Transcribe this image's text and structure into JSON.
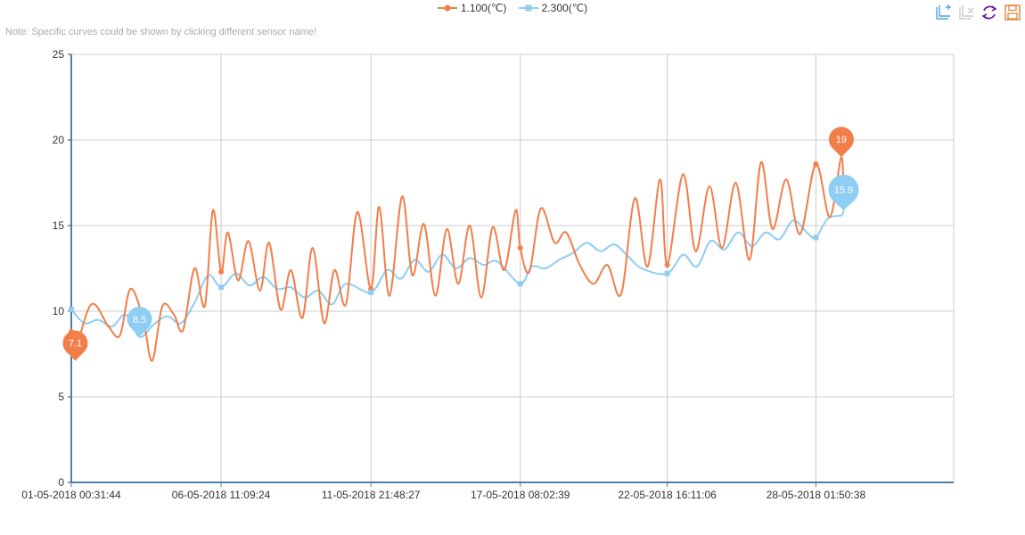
{
  "note": "Note: Specific curves could be shown by clicking different sensor name!",
  "colors": {
    "s1": "#f27e4a",
    "s2": "#8fcdf2",
    "axis": "#4d7fa8",
    "grid": "#cccccc"
  },
  "toolbox": [
    {
      "name": "zoom-icon"
    },
    {
      "name": "zoom-reset-icon"
    },
    {
      "name": "restore-icon"
    },
    {
      "name": "save-image-icon"
    }
  ],
  "chart_data": {
    "type": "line",
    "title": "",
    "ylim": [
      0,
      25
    ],
    "yticks": [
      0,
      5,
      10,
      15,
      20,
      25
    ],
    "xticks": [
      "01-05-2018 00:31:44",
      "06-05-2018 11:09:24",
      "11-05-2018 21:48:27",
      "17-05-2018 08:02:39",
      "22-05-2018 16:11:06",
      "28-05-2018 01:50:38"
    ],
    "xlim": [
      "2018-05-01 00:31:44",
      "2018-06-02 02:00:00"
    ],
    "grid": true,
    "legend": "top-center",
    "series": [
      {
        "name": "1.100(℃)",
        "marker": "circle",
        "points": [
          [
            "2018-05-01 00:31",
            8.8
          ],
          [
            "2018-05-01 03:00",
            7.5
          ],
          [
            "2018-05-01 18:00",
            10.4
          ],
          [
            "2018-05-02 09:00",
            9.1
          ],
          [
            "2018-05-02 19:00",
            8.6
          ],
          [
            "2018-05-03 04:00",
            11.3
          ],
          [
            "2018-05-03 15:00",
            9.6
          ],
          [
            "2018-05-03 23:00",
            7.1
          ],
          [
            "2018-05-04 08:00",
            10.3
          ],
          [
            "2018-05-04 18:00",
            9.8
          ],
          [
            "2018-05-05 02:00",
            8.9
          ],
          [
            "2018-05-05 12:00",
            12.5
          ],
          [
            "2018-05-05 21:00",
            10.3
          ],
          [
            "2018-05-06 04:00",
            15.9
          ],
          [
            "2018-05-06 11:09",
            12.3
          ],
          [
            "2018-05-06 17:00",
            14.6
          ],
          [
            "2018-05-07 02:00",
            11.8
          ],
          [
            "2018-05-07 11:00",
            14.1
          ],
          [
            "2018-05-07 21:00",
            11.2
          ],
          [
            "2018-05-08 05:00",
            14.0
          ],
          [
            "2018-05-08 15:00",
            10.1
          ],
          [
            "2018-05-09 00:00",
            12.4
          ],
          [
            "2018-05-09 10:00",
            9.6
          ],
          [
            "2018-05-09 19:00",
            13.7
          ],
          [
            "2018-05-10 05:00",
            9.3
          ],
          [
            "2018-05-10 14:00",
            12.4
          ],
          [
            "2018-05-11 00:00",
            10.4
          ],
          [
            "2018-05-11 10:00",
            15.8
          ],
          [
            "2018-05-11 21:48",
            11.3
          ],
          [
            "2018-05-12 05:00",
            16.1
          ],
          [
            "2018-05-12 14:00",
            10.9
          ],
          [
            "2018-05-13 01:00",
            16.7
          ],
          [
            "2018-05-13 10:00",
            12.1
          ],
          [
            "2018-05-13 20:00",
            15.1
          ],
          [
            "2018-05-14 06:00",
            10.9
          ],
          [
            "2018-05-14 16:00",
            14.8
          ],
          [
            "2018-05-15 02:00",
            11.6
          ],
          [
            "2018-05-15 12:00",
            15.0
          ],
          [
            "2018-05-15 22:00",
            10.8
          ],
          [
            "2018-05-16 08:00",
            14.9
          ],
          [
            "2018-05-16 18:00",
            12.4
          ],
          [
            "2018-05-17 04:00",
            15.9
          ],
          [
            "2018-05-17 08:02",
            13.7
          ],
          [
            "2018-05-17 16:00",
            12.3
          ],
          [
            "2018-05-18 02:00",
            16.0
          ],
          [
            "2018-05-18 14:00",
            14.0
          ],
          [
            "2018-05-19 00:00",
            14.6
          ],
          [
            "2018-05-19 12:00",
            12.7
          ],
          [
            "2018-05-20 00:00",
            11.6
          ],
          [
            "2018-05-20 12:00",
            12.7
          ],
          [
            "2018-05-21 00:00",
            11.0
          ],
          [
            "2018-05-21 12:00",
            16.6
          ],
          [
            "2018-05-21 23:00",
            12.6
          ],
          [
            "2018-05-22 10:00",
            17.7
          ],
          [
            "2018-05-22 16:11",
            12.7
          ],
          [
            "2018-05-23 06:00",
            18.0
          ],
          [
            "2018-05-23 17:00",
            13.5
          ],
          [
            "2018-05-24 05:00",
            17.3
          ],
          [
            "2018-05-24 16:00",
            13.7
          ],
          [
            "2018-05-25 04:00",
            17.5
          ],
          [
            "2018-05-25 16:00",
            13.0
          ],
          [
            "2018-05-26 02:00",
            18.7
          ],
          [
            "2018-05-26 12:00",
            14.8
          ],
          [
            "2018-05-27 00:00",
            17.7
          ],
          [
            "2018-05-27 12:00",
            14.5
          ],
          [
            "2018-05-28 01:50",
            18.6
          ],
          [
            "2018-05-28 14:00",
            15.5
          ],
          [
            "2018-05-29 00:00",
            19.0
          ],
          [
            "2018-05-29 02:00",
            16.1
          ]
        ]
      },
      {
        "name": "2.300(℃)",
        "marker": "square",
        "points": [
          [
            "2018-05-01 00:31",
            10.1
          ],
          [
            "2018-05-01 12:00",
            9.3
          ],
          [
            "2018-05-02 00:00",
            9.5
          ],
          [
            "2018-05-02 12:00",
            9.1
          ],
          [
            "2018-05-03 00:00",
            9.8
          ],
          [
            "2018-05-03 12:00",
            8.5
          ],
          [
            "2018-05-04 00:00",
            9.2
          ],
          [
            "2018-05-04 12:00",
            9.7
          ],
          [
            "2018-05-05 00:00",
            9.3
          ],
          [
            "2018-05-05 12:00",
            10.5
          ],
          [
            "2018-05-06 00:00",
            12.1
          ],
          [
            "2018-05-06 11:09",
            11.4
          ],
          [
            "2018-05-07 00:00",
            12.2
          ],
          [
            "2018-05-07 12:00",
            11.5
          ],
          [
            "2018-05-08 00:00",
            12.0
          ],
          [
            "2018-05-08 12:00",
            11.3
          ],
          [
            "2018-05-09 00:00",
            11.4
          ],
          [
            "2018-05-09 12:00",
            10.8
          ],
          [
            "2018-05-10 00:00",
            11.2
          ],
          [
            "2018-05-10 12:00",
            10.4
          ],
          [
            "2018-05-11 00:00",
            11.6
          ],
          [
            "2018-05-11 21:48",
            11.1
          ],
          [
            "2018-05-12 12:00",
            12.4
          ],
          [
            "2018-05-13 00:00",
            11.9
          ],
          [
            "2018-05-13 12:00",
            13.0
          ],
          [
            "2018-05-14 00:00",
            12.3
          ],
          [
            "2018-05-14 12:00",
            13.3
          ],
          [
            "2018-05-15 00:00",
            12.5
          ],
          [
            "2018-05-15 12:00",
            13.1
          ],
          [
            "2018-05-16 00:00",
            12.7
          ],
          [
            "2018-05-16 12:00",
            12.9
          ],
          [
            "2018-05-17 08:02",
            11.6
          ],
          [
            "2018-05-17 18:00",
            12.6
          ],
          [
            "2018-05-18 06:00",
            12.5
          ],
          [
            "2018-05-18 18:00",
            13.0
          ],
          [
            "2018-05-19 06:00",
            13.4
          ],
          [
            "2018-05-19 18:00",
            14.0
          ],
          [
            "2018-05-20 06:00",
            13.5
          ],
          [
            "2018-05-20 18:00",
            13.9
          ],
          [
            "2018-05-21 06:00",
            13.2
          ],
          [
            "2018-05-21 18:00",
            12.5
          ],
          [
            "2018-05-22 16:11",
            12.2
          ],
          [
            "2018-05-23 06:00",
            13.3
          ],
          [
            "2018-05-23 18:00",
            12.6
          ],
          [
            "2018-05-24 06:00",
            14.1
          ],
          [
            "2018-05-24 18:00",
            13.6
          ],
          [
            "2018-05-25 06:00",
            14.6
          ],
          [
            "2018-05-25 18:00",
            13.8
          ],
          [
            "2018-05-26 06:00",
            14.6
          ],
          [
            "2018-05-26 18:00",
            14.2
          ],
          [
            "2018-05-27 06:00",
            15.3
          ],
          [
            "2018-05-27 18:00",
            14.6
          ],
          [
            "2018-05-28 01:50",
            14.3
          ],
          [
            "2018-05-28 12:00",
            15.4
          ],
          [
            "2018-05-29 00:00",
            15.6
          ],
          [
            "2018-05-29 02:00",
            15.9
          ]
        ]
      }
    ],
    "markpoints": [
      {
        "series": 0,
        "label": "7.1",
        "date": "2018-05-01 04:00",
        "value": 7.1
      },
      {
        "series": 1,
        "label": "8.5",
        "date": "2018-05-03 12:00",
        "value": 8.5
      },
      {
        "series": 0,
        "label": "19",
        "date": "2018-05-29 00:00",
        "value": 19.0
      },
      {
        "series": 1,
        "label": "15.9",
        "date": "2018-05-29 02:00",
        "value": 15.9
      }
    ]
  }
}
